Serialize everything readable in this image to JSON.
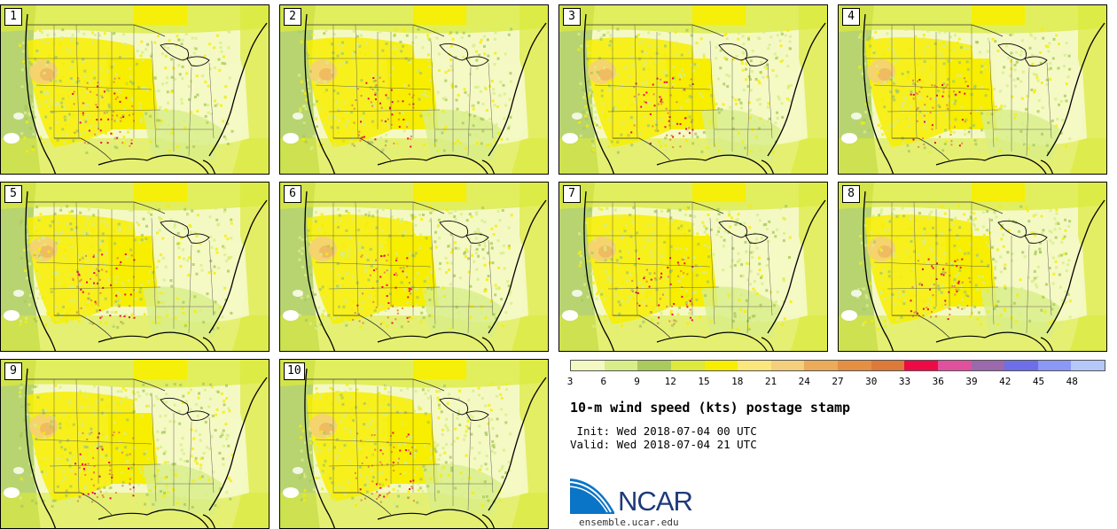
{
  "panels": [
    {
      "label": "1"
    },
    {
      "label": "2"
    },
    {
      "label": "3"
    },
    {
      "label": "4"
    },
    {
      "label": "5"
    },
    {
      "label": "6"
    },
    {
      "label": "7"
    },
    {
      "label": "8"
    },
    {
      "label": "9"
    },
    {
      "label": "10"
    }
  ],
  "colorbar": {
    "ticks": [
      "3",
      "6",
      "9",
      "12",
      "15",
      "18",
      "21",
      "24",
      "27",
      "30",
      "33",
      "36",
      "39",
      "42",
      "45",
      "48"
    ],
    "colors": [
      "#f4f9c4",
      "#d8ee88",
      "#a9cb5c",
      "#dbea3c",
      "#f7ee00",
      "#fbe77c",
      "#f4cf7c",
      "#ebab58",
      "#e58f42",
      "#dd7a3a",
      "#ee0a44",
      "#e0509c",
      "#9b69ac",
      "#6e6ee8",
      "#8a99f8",
      "#b6c8fa"
    ]
  },
  "title": "10-m wind speed (kts) postage stamp",
  "init": " Init: Wed 2018-07-04 00 UTC",
  "valid": "Valid: Wed 2018-07-04 21 UTC",
  "logo_text": "NCAR",
  "website": "ensemble.ucar.edu"
}
